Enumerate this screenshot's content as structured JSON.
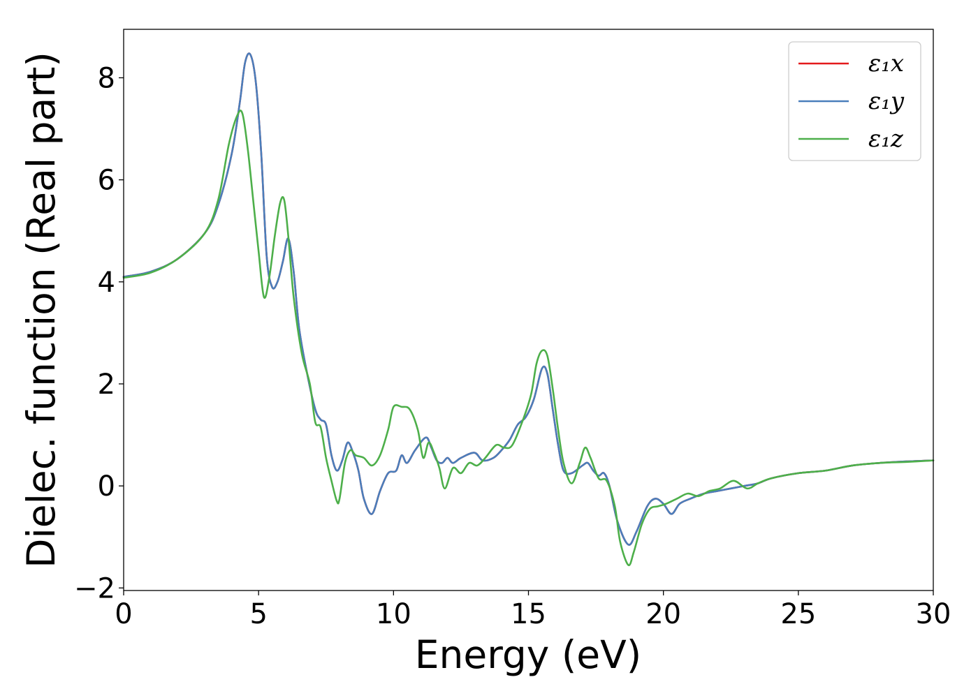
{
  "chart_data": {
    "type": "line",
    "xlabel": "Energy (eV)",
    "ylabel": "Dielec. function (Real part)",
    "xlim": [
      0,
      30
    ],
    "ylim": [
      -2.05,
      8.95
    ],
    "xticks": [
      0,
      5,
      10,
      15,
      20,
      25,
      30
    ],
    "xtick_labels": [
      "0",
      "5",
      "10",
      "15",
      "20",
      "25",
      "30"
    ],
    "yticks": [
      -2,
      0,
      2,
      4,
      6,
      8
    ],
    "ytick_labels": [
      "−2",
      "0",
      "2",
      "4",
      "6",
      "8"
    ],
    "grid": false,
    "legend_position": "top-right",
    "series": [
      {
        "name": "ε₁x",
        "color": "#e41a1c",
        "x": [
          0,
          1,
          2,
          3,
          3.5,
          4,
          4.3,
          4.5,
          4.7,
          4.9,
          5.1,
          5.3,
          5.5,
          5.7,
          5.9,
          6.1,
          6.3,
          6.5,
          6.8,
          7.1,
          7.3,
          7.5,
          7.7,
          7.9,
          8.1,
          8.3,
          8.5,
          8.7,
          8.9,
          9.2,
          9.5,
          9.8,
          10.1,
          10.3,
          10.5,
          10.8,
          11.2,
          11.4,
          11.6,
          11.8,
          12.0,
          12.2,
          12.5,
          13.0,
          13.3,
          13.7,
          14.0,
          14.3,
          14.6,
          14.9,
          15.2,
          15.5,
          15.7,
          15.9,
          16.1,
          16.3,
          16.6,
          17.0,
          17.2,
          17.4,
          17.6,
          17.8,
          18.0,
          18.3,
          18.7,
          19.0,
          19.4,
          19.7,
          20.0,
          20.3,
          20.6,
          21.0,
          21.5,
          22.0,
          22.5,
          23.0,
          23.5,
          24.0,
          25.0,
          26.0,
          27.0,
          28.0,
          29.0,
          30.0
        ],
        "values": [
          4.1,
          4.2,
          4.45,
          4.95,
          5.5,
          6.5,
          7.5,
          8.3,
          8.45,
          7.9,
          6.5,
          4.5,
          3.9,
          4.0,
          4.4,
          4.85,
          4.2,
          3.1,
          2.2,
          1.5,
          1.3,
          1.2,
          0.6,
          0.3,
          0.5,
          0.85,
          0.65,
          0.3,
          -0.25,
          -0.55,
          -0.1,
          0.25,
          0.3,
          0.6,
          0.45,
          0.7,
          0.95,
          0.75,
          0.5,
          0.45,
          0.55,
          0.45,
          0.55,
          0.65,
          0.5,
          0.55,
          0.7,
          0.9,
          1.2,
          1.35,
          1.7,
          2.3,
          2.2,
          1.5,
          0.8,
          0.3,
          0.25,
          0.4,
          0.45,
          0.3,
          0.2,
          0.25,
          0.0,
          -0.7,
          -1.15,
          -0.9,
          -0.4,
          -0.25,
          -0.35,
          -0.55,
          -0.35,
          -0.25,
          -0.15,
          -0.1,
          -0.05,
          0.0,
          0.05,
          0.15,
          0.25,
          0.3,
          0.4,
          0.45,
          0.48,
          0.5
        ]
      },
      {
        "name": "ε₁y",
        "color": "#4a7ebb",
        "x": [
          0,
          1,
          2,
          3,
          3.5,
          4,
          4.3,
          4.5,
          4.7,
          4.9,
          5.1,
          5.3,
          5.5,
          5.7,
          5.9,
          6.1,
          6.3,
          6.5,
          6.8,
          7.1,
          7.3,
          7.5,
          7.7,
          7.9,
          8.1,
          8.3,
          8.5,
          8.7,
          8.9,
          9.2,
          9.5,
          9.8,
          10.1,
          10.3,
          10.5,
          10.8,
          11.2,
          11.4,
          11.6,
          11.8,
          12.0,
          12.2,
          12.5,
          13.0,
          13.3,
          13.7,
          14.0,
          14.3,
          14.6,
          14.9,
          15.2,
          15.5,
          15.7,
          15.9,
          16.1,
          16.3,
          16.6,
          17.0,
          17.2,
          17.4,
          17.6,
          17.8,
          18.0,
          18.3,
          18.7,
          19.0,
          19.4,
          19.7,
          20.0,
          20.3,
          20.6,
          21.0,
          21.5,
          22.0,
          22.5,
          23.0,
          23.5,
          24.0,
          25.0,
          26.0,
          27.0,
          28.0,
          29.0,
          30.0
        ],
        "values": [
          4.1,
          4.2,
          4.45,
          4.95,
          5.5,
          6.5,
          7.5,
          8.3,
          8.45,
          7.9,
          6.5,
          4.5,
          3.9,
          4.0,
          4.4,
          4.85,
          4.2,
          3.1,
          2.2,
          1.5,
          1.3,
          1.2,
          0.6,
          0.3,
          0.5,
          0.85,
          0.65,
          0.3,
          -0.25,
          -0.55,
          -0.1,
          0.25,
          0.3,
          0.6,
          0.45,
          0.7,
          0.95,
          0.75,
          0.5,
          0.45,
          0.55,
          0.45,
          0.55,
          0.65,
          0.5,
          0.55,
          0.7,
          0.9,
          1.2,
          1.35,
          1.7,
          2.3,
          2.2,
          1.5,
          0.8,
          0.3,
          0.25,
          0.4,
          0.45,
          0.3,
          0.2,
          0.25,
          0.0,
          -0.7,
          -1.15,
          -0.9,
          -0.4,
          -0.25,
          -0.35,
          -0.55,
          -0.35,
          -0.25,
          -0.15,
          -0.1,
          -0.05,
          0.0,
          0.05,
          0.15,
          0.25,
          0.3,
          0.4,
          0.45,
          0.48,
          0.5
        ]
      },
      {
        "name": "ε₁z",
        "color": "#4daf4a",
        "x": [
          0,
          1,
          2,
          3,
          3.5,
          3.9,
          4.2,
          4.4,
          4.6,
          4.8,
          5.0,
          5.2,
          5.4,
          5.6,
          5.8,
          5.95,
          6.1,
          6.3,
          6.6,
          6.9,
          7.1,
          7.3,
          7.5,
          7.7,
          7.9,
          8.0,
          8.2,
          8.4,
          8.6,
          8.9,
          9.2,
          9.5,
          9.8,
          10.0,
          10.3,
          10.6,
          10.9,
          11.1,
          11.3,
          11.5,
          11.7,
          11.9,
          12.2,
          12.5,
          12.8,
          13.1,
          13.4,
          13.8,
          14.1,
          14.4,
          14.8,
          15.1,
          15.3,
          15.5,
          15.7,
          15.9,
          16.1,
          16.3,
          16.6,
          16.9,
          17.1,
          17.3,
          17.6,
          17.9,
          18.2,
          18.4,
          18.7,
          18.9,
          19.2,
          19.5,
          19.8,
          20.1,
          20.5,
          20.9,
          21.3,
          21.7,
          22.1,
          22.6,
          23.1,
          23.5,
          24.0,
          25.0,
          26.0,
          27.0,
          28.0,
          29.0,
          30.0
        ],
        "values": [
          4.08,
          4.18,
          4.45,
          4.95,
          5.6,
          6.7,
          7.25,
          7.3,
          6.6,
          5.6,
          4.6,
          3.7,
          4.1,
          4.9,
          5.55,
          5.6,
          4.9,
          3.7,
          2.6,
          2.0,
          1.25,
          1.15,
          0.55,
          0.1,
          -0.3,
          -0.25,
          0.45,
          0.7,
          0.6,
          0.55,
          0.4,
          0.6,
          1.1,
          1.55,
          1.55,
          1.5,
          1.1,
          0.55,
          0.85,
          0.65,
          0.35,
          -0.05,
          0.35,
          0.25,
          0.45,
          0.4,
          0.55,
          0.8,
          0.75,
          0.8,
          1.3,
          1.8,
          2.4,
          2.65,
          2.55,
          1.9,
          1.1,
          0.45,
          0.05,
          0.45,
          0.75,
          0.55,
          0.15,
          0.1,
          -0.4,
          -1.1,
          -1.55,
          -1.3,
          -0.75,
          -0.45,
          -0.4,
          -0.35,
          -0.25,
          -0.15,
          -0.2,
          -0.1,
          -0.05,
          0.1,
          -0.05,
          0.05,
          0.15,
          0.25,
          0.3,
          0.4,
          0.45,
          0.47,
          0.5
        ]
      }
    ]
  }
}
